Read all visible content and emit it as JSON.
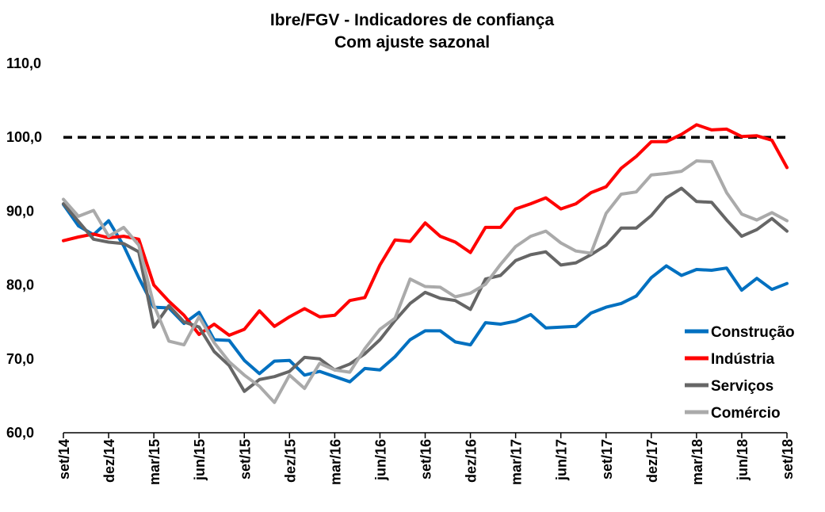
{
  "chart_data": {
    "type": "line",
    "title": "Ibre/FGV - Indicadores de confiança",
    "subtitle": "Com ajuste sazonal",
    "xlabel": "",
    "ylabel": "",
    "ylim": [
      60,
      110
    ],
    "y_ticks": [
      "110,0",
      "100,0",
      "90,0",
      "80,0",
      "70,0",
      "60,0"
    ],
    "y_tick_values": [
      110,
      100,
      90,
      80,
      70,
      60
    ],
    "x_tick_labels": [
      "set/14",
      "dez/14",
      "mar/15",
      "jun/15",
      "set/15",
      "dez/15",
      "mar/16",
      "jun/16",
      "set/16",
      "dez/16",
      "mar/17",
      "jun/17",
      "set/17",
      "dez/17",
      "mar/18",
      "jun/18",
      "set/18"
    ],
    "x_tick_index": [
      0,
      3,
      6,
      9,
      12,
      15,
      18,
      21,
      24,
      27,
      30,
      33,
      36,
      39,
      42,
      45,
      48
    ],
    "grid": false,
    "legend_position": "bottom-right",
    "reference_line": {
      "value": 100,
      "style": "dashed",
      "color": "#000000"
    },
    "categories": [
      "set/14",
      "out/14",
      "nov/14",
      "dez/14",
      "jan/15",
      "fev/15",
      "mar/15",
      "abr/15",
      "mai/15",
      "jun/15",
      "jul/15",
      "ago/15",
      "set/15",
      "out/15",
      "nov/15",
      "dez/15",
      "jan/16",
      "fev/16",
      "mar/16",
      "abr/16",
      "mai/16",
      "jun/16",
      "jul/16",
      "ago/16",
      "set/16",
      "out/16",
      "nov/16",
      "dez/16",
      "jan/17",
      "fev/17",
      "mar/17",
      "abr/17",
      "mai/17",
      "jun/17",
      "jul/17",
      "ago/17",
      "set/17",
      "out/17",
      "nov/17",
      "dez/17",
      "jan/18",
      "fev/18",
      "mar/18",
      "abr/18",
      "mai/18",
      "jun/18",
      "jul/18",
      "ago/18",
      "set/18"
    ],
    "series": [
      {
        "name": "Construção",
        "color": "#0070C0",
        "values": [
          90.9,
          88.0,
          86.8,
          88.7,
          85.3,
          81.0,
          77.0,
          76.9,
          74.8,
          76.3,
          72.6,
          72.5,
          69.8,
          68.0,
          69.7,
          69.8,
          67.8,
          68.3,
          67.6,
          66.9,
          68.7,
          68.5,
          70.3,
          72.6,
          73.8,
          73.8,
          72.3,
          71.9,
          74.9,
          74.7,
          75.1,
          76.0,
          74.2,
          74.3,
          74.4,
          76.2,
          77.0,
          77.5,
          78.5,
          81.0,
          82.6,
          81.3,
          82.1,
          82.0,
          82.3,
          79.3,
          80.9,
          79.4,
          80.2
        ]
      },
      {
        "name": "Indústria",
        "color": "#FF0000",
        "values": [
          86.0,
          86.5,
          86.9,
          86.4,
          86.6,
          86.2,
          80.0,
          77.8,
          75.9,
          73.3,
          74.7,
          73.2,
          74.0,
          76.5,
          74.4,
          75.7,
          76.8,
          75.7,
          75.9,
          77.9,
          78.3,
          82.7,
          86.1,
          85.9,
          88.4,
          86.6,
          85.8,
          84.4,
          87.8,
          87.8,
          90.3,
          91.0,
          91.8,
          90.3,
          91.0,
          92.5,
          93.3,
          95.8,
          97.4,
          99.4,
          99.4,
          100.4,
          101.7,
          101.0,
          101.1,
          100.1,
          100.2,
          99.6,
          95.9
        ]
      },
      {
        "name": "Serviços",
        "color": "#666666",
        "values": [
          91.0,
          88.6,
          86.2,
          85.8,
          85.6,
          84.5,
          74.3,
          77.2,
          75.0,
          74.3,
          71.0,
          69.1,
          65.6,
          67.2,
          67.6,
          68.3,
          70.2,
          70.0,
          68.5,
          69.3,
          70.7,
          72.6,
          75.2,
          77.5,
          79.0,
          78.2,
          77.9,
          76.7,
          80.8,
          81.3,
          83.3,
          84.1,
          84.5,
          82.7,
          83.0,
          84.1,
          85.4,
          87.7,
          87.7,
          89.4,
          91.8,
          93.1,
          91.3,
          91.2,
          88.8,
          86.6,
          87.5,
          89.0,
          87.3
        ]
      },
      {
        "name": "Comércio",
        "color": "#AAAAAA",
        "values": [
          91.6,
          89.3,
          90.1,
          86.6,
          87.8,
          85.4,
          77.3,
          72.4,
          71.9,
          75.7,
          72.2,
          69.6,
          67.8,
          66.3,
          64.1,
          67.8,
          66.0,
          69.4,
          68.5,
          68.2,
          71.4,
          74.0,
          75.5,
          80.8,
          79.8,
          79.7,
          78.4,
          78.9,
          80.1,
          82.8,
          85.2,
          86.6,
          87.3,
          85.7,
          84.6,
          84.3,
          89.7,
          92.3,
          92.6,
          94.9,
          95.1,
          95.4,
          96.8,
          96.7,
          92.5,
          89.6,
          88.8,
          89.8,
          88.7
        ]
      }
    ]
  }
}
